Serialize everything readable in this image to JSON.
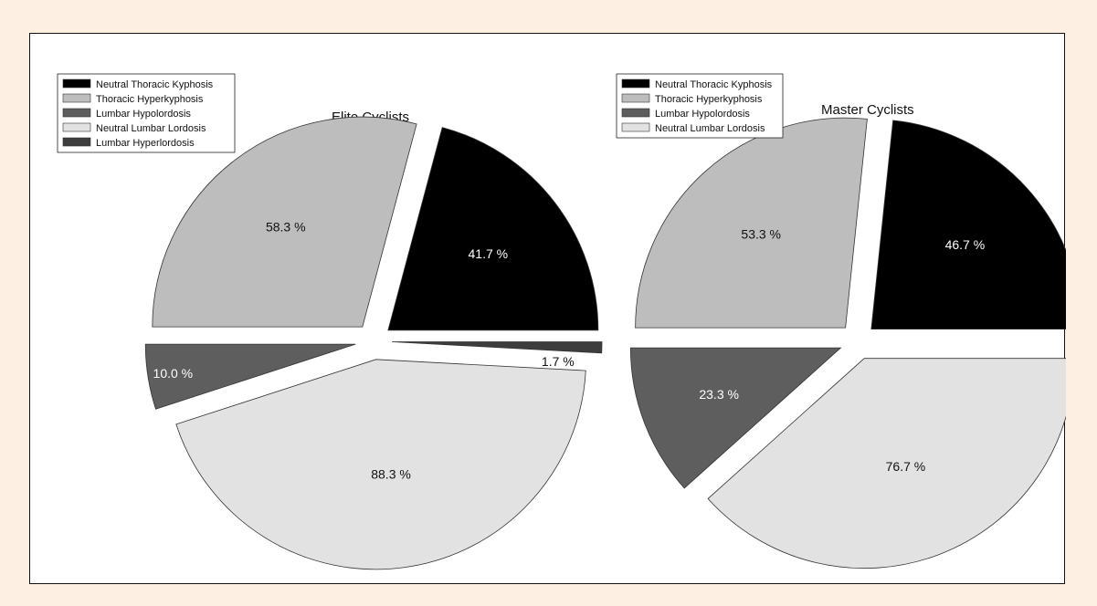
{
  "chart_data": [
    {
      "type": "pie",
      "title": "Elite Cyclists",
      "legend": {
        "placement": "top-left",
        "entries": [
          "Neutral Thoracic Kyphosis",
          "Thoracic Hyperkyphosis",
          "Lumbar Hypolordosis",
          "Neutral Lumbar Lordosis",
          "Lumbar Hyperlordosis"
        ]
      },
      "slices": [
        {
          "name": "Neutral Thoracic Kyphosis",
          "value": 41.7,
          "label": "41.7 %",
          "color": "#000000"
        },
        {
          "name": "Thoracic Hyperkyphosis",
          "value": 58.3,
          "label": "58.3 %",
          "color": "#bdbdbd"
        },
        {
          "name": "Lumbar Hypolordosis",
          "value": 10.0,
          "label": "10.0 %",
          "color": "#5e5e5e"
        },
        {
          "name": "Neutral Lumbar Lordosis",
          "value": 88.3,
          "label": "88.3 %",
          "color": "#e2e2e2"
        },
        {
          "name": "Lumbar Hyperlordosis",
          "value": 1.7,
          "label": "1.7 %",
          "color": "#3d3d3d"
        }
      ]
    },
    {
      "type": "pie",
      "title": "Master Cyclists",
      "legend": {
        "placement": "top-left",
        "entries": [
          "Neutral Thoracic Kyphosis",
          "Thoracic Hyperkyphosis",
          "Lumbar Hypolordosis",
          "Neutral Lumbar Lordosis"
        ]
      },
      "slices": [
        {
          "name": "Neutral Thoracic Kyphosis",
          "value": 46.7,
          "label": "46.7 %",
          "color": "#000000"
        },
        {
          "name": "Thoracic Hyperkyphosis",
          "value": 53.3,
          "label": "53.3 %",
          "color": "#bdbdbd"
        },
        {
          "name": "Lumbar Hypolordosis",
          "value": 23.3,
          "label": "23.3 %",
          "color": "#5e5e5e"
        },
        {
          "name": "Neutral Lumbar Lordosis",
          "value": 76.7,
          "label": "76.7 %",
          "color": "#e2e2e2"
        }
      ]
    }
  ]
}
